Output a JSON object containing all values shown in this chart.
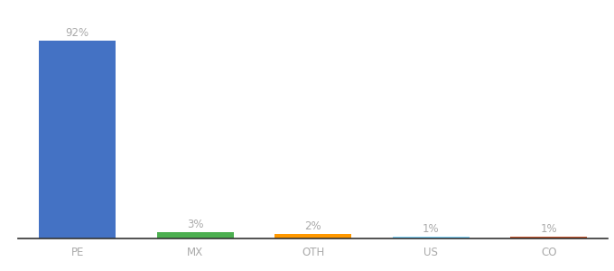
{
  "categories": [
    "PE",
    "MX",
    "OTH",
    "US",
    "CO"
  ],
  "values": [
    92,
    3,
    2,
    1,
    1
  ],
  "bar_colors": [
    "#4472c4",
    "#4caf50",
    "#ff9800",
    "#81d4fa",
    "#c0532b"
  ],
  "labels": [
    "92%",
    "3%",
    "2%",
    "1%",
    "1%"
  ],
  "background_color": "#ffffff",
  "ylim": [
    0,
    102
  ],
  "label_fontsize": 8.5,
  "tick_fontsize": 8.5,
  "label_color": "#aaaaaa",
  "tick_color": "#aaaaaa",
  "bar_width": 0.65
}
